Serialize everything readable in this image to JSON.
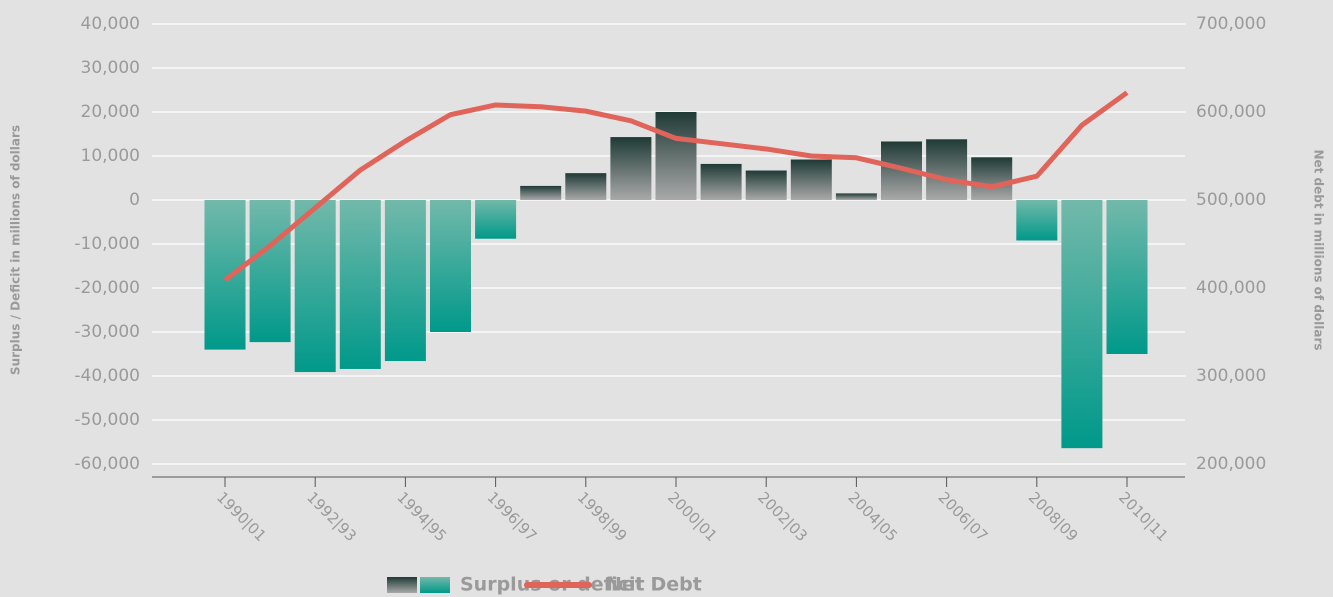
{
  "chart_data": {
    "type": "bar_line",
    "ylabel": "Surplus / Deficit in millions of dollars",
    "y2label": "Net debt in millions of dollars",
    "categories": [
      "1990|01",
      null,
      "1992|93",
      null,
      "1994|95",
      null,
      "1996|97",
      null,
      "1998|99",
      null,
      "2000|01",
      null,
      "2002|03",
      null,
      "2004|05",
      null,
      "2006|07",
      null,
      "2008|09",
      null,
      "2010|11"
    ],
    "series": [
      {
        "name": "Surplus or deficit",
        "type": "bar",
        "color": "#00998a",
        "positive_color": "#1f3a35",
        "values": [
          -34000,
          -32300,
          -39100,
          -38400,
          -36600,
          -30000,
          -8800,
          3200,
          6100,
          14300,
          20000,
          8200,
          6700,
          9200,
          1500,
          13300,
          13800,
          9700,
          -9200,
          -56400,
          -35000
        ]
      },
      {
        "name": "Net Debt",
        "type": "line",
        "axis": "y2",
        "color": "#e0645a",
        "values": [
          409000,
          448000,
          491000,
          534000,
          567000,
          597000,
          608000,
          606000,
          601000,
          590000,
          570000,
          564000,
          558000,
          550000,
          548000,
          536000,
          523000,
          515000,
          527000,
          585000,
          622000
        ]
      }
    ],
    "ylim": [
      -60000,
      40000
    ],
    "yticks": [
      {
        "value": 40000,
        "label": "40,000"
      },
      {
        "value": 30000,
        "label": "30,000"
      },
      {
        "value": 20000,
        "label": "20,000"
      },
      {
        "value": 10000,
        "label": "10,000"
      },
      0,
      {
        "value": -10000,
        "label": "-10,000"
      },
      {
        "value": -20000,
        "label": "-20,000"
      },
      {
        "value": -30000,
        "label": "-30,000"
      },
      {
        "value": -40000,
        "label": "-40,000"
      },
      {
        "value": -50000,
        "label": "-50,000"
      },
      {
        "value": -60000,
        "label": "-60,000"
      }
    ],
    "y2lim": [
      200000,
      700000
    ],
    "y2ticks": [
      {
        "value": 700000,
        "label": "700,000"
      },
      {
        "value": 600000,
        "label": "600,000"
      },
      {
        "value": 500000,
        "label": "500,000"
      },
      {
        "value": 400000,
        "label": "400,000"
      },
      {
        "value": 300000,
        "label": "300,000"
      },
      {
        "value": 200000,
        "label": "200,000"
      }
    ],
    "grid": true
  }
}
